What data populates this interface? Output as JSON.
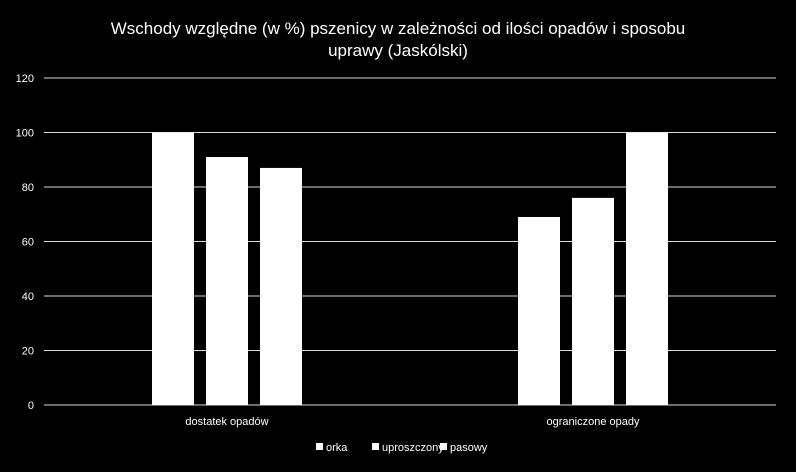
{
  "chart_data": {
    "type": "bar",
    "title": "Wschody względne (w %) pszenicy w zależności od ilości opadów i sposobu uprawy (Jaskólski)",
    "title_lines": [
      "Wschody względne (w %) pszenicy w zależności od ilości opadów i sposobu",
      "uprawy (Jaskólski)"
    ],
    "categories": [
      "dostatek opadów",
      "ograniczone opady"
    ],
    "series": [
      {
        "name": "orka",
        "values": [
          100,
          69
        ]
      },
      {
        "name": "uproszczony",
        "values": [
          91,
          76
        ]
      },
      {
        "name": "pasowy",
        "values": [
          87,
          100
        ]
      }
    ],
    "y_ticks": [
      "0",
      "20",
      "40",
      "60",
      "80",
      "100",
      "120"
    ],
    "ylim": [
      0,
      120
    ],
    "grid": true,
    "legend_position": "bottom",
    "colors": {
      "background": "#000000",
      "bar": "#ffffff",
      "grid": "#d9d9d9",
      "text": "#ffffff"
    }
  }
}
